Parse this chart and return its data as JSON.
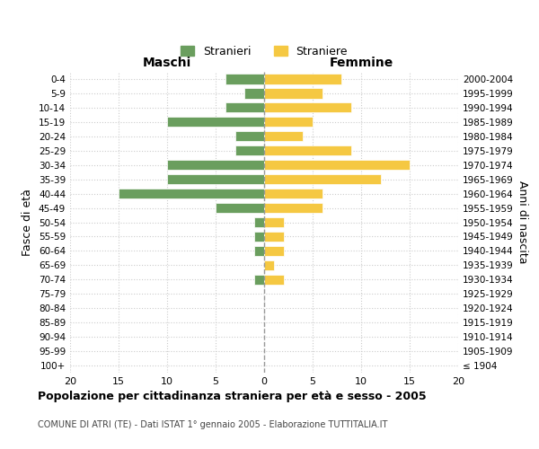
{
  "age_groups": [
    "100+",
    "95-99",
    "90-94",
    "85-89",
    "80-84",
    "75-79",
    "70-74",
    "65-69",
    "60-64",
    "55-59",
    "50-54",
    "45-49",
    "40-44",
    "35-39",
    "30-34",
    "25-29",
    "20-24",
    "15-19",
    "10-14",
    "5-9",
    "0-4"
  ],
  "birth_years": [
    "≤ 1904",
    "1905-1909",
    "1910-1914",
    "1915-1919",
    "1920-1924",
    "1925-1929",
    "1930-1934",
    "1935-1939",
    "1940-1944",
    "1945-1949",
    "1950-1954",
    "1955-1959",
    "1960-1964",
    "1965-1969",
    "1970-1974",
    "1975-1979",
    "1980-1984",
    "1985-1989",
    "1990-1994",
    "1995-1999",
    "2000-2004"
  ],
  "males": [
    0,
    0,
    0,
    0,
    0,
    0,
    1,
    0,
    1,
    1,
    1,
    5,
    15,
    10,
    10,
    3,
    3,
    10,
    4,
    2,
    4
  ],
  "females": [
    0,
    0,
    0,
    0,
    0,
    0,
    2,
    1,
    2,
    2,
    2,
    6,
    6,
    12,
    15,
    9,
    4,
    5,
    9,
    6,
    8
  ],
  "male_color": "#6a9e5e",
  "female_color": "#f5c842",
  "xlim": 20,
  "title": "Popolazione per cittadinanza straniera per età e sesso - 2005",
  "subtitle": "COMUNE DI ATRI (TE) - Dati ISTAT 1° gennaio 2005 - Elaborazione TUTTITALIA.IT",
  "xlabel_left": "Maschi",
  "xlabel_right": "Femmine",
  "ylabel_left": "Fasce di età",
  "ylabel_right": "Anni di nascita",
  "legend_males": "Stranieri",
  "legend_females": "Straniere",
  "background_color": "#ffffff",
  "grid_color": "#cccccc"
}
